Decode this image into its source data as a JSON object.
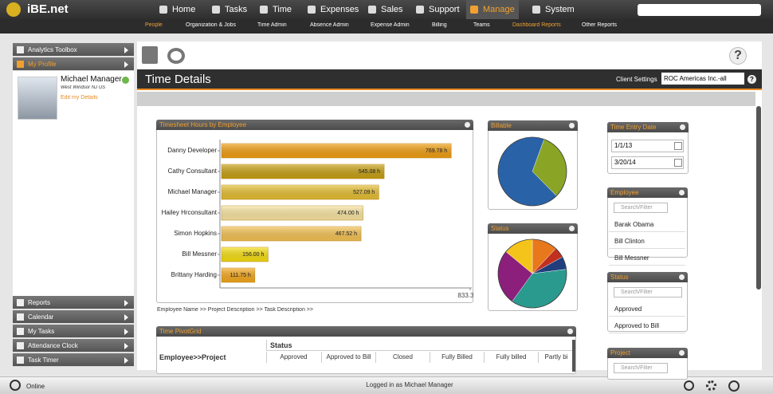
{
  "logo": "iBE.net",
  "nav": [
    "Home",
    "Tasks",
    "Time",
    "Expenses",
    "Sales",
    "Support",
    "Manage",
    "System"
  ],
  "subnav": [
    "People",
    "Organization & Jobs",
    "Time Admin",
    "Absence Admin",
    "Expense Admin",
    "Billing",
    "Teams",
    "Dashboard Reports",
    "Other Reports"
  ],
  "sidebar": {
    "top": [
      "Analytics Toolbox",
      "My Profile"
    ],
    "profile": {
      "name": "Michael Manager",
      "location": "West Windsor NJ US",
      "edit": "Edit my Details"
    },
    "bottom": [
      "Reports",
      "Calendar",
      "My Tasks",
      "Attendance Clock",
      "Task Timer"
    ]
  },
  "header": {
    "title": "Time Details",
    "client_settings": "Client Settings",
    "client": "ROC Americas Inc.-all"
  },
  "chart_data": [
    {
      "type": "bar",
      "title": "Timesheet Hours by Employee",
      "categories": [
        "Danny Developer",
        "Cathy Consultant",
        "Michael Manager",
        "Hailey Hrconsultant",
        "Simon Hopkins",
        "Bill Messner",
        "Brittany Harding"
      ],
      "values": [
        769.78,
        545.08,
        527.09,
        474.0,
        467.52,
        156.0,
        111.75
      ],
      "value_labels": [
        "769.78 h",
        "545.08 h",
        "527.09 h",
        "474.00 h",
        "467.52 h",
        "156.00 h",
        "111.75 h"
      ],
      "colors": [
        "#f2a012",
        "#c9a214",
        "#e7c032",
        "#fbe7a2",
        "#f7c455",
        "#f8e012",
        "#f6a91c"
      ],
      "xlim": [
        0,
        833.33
      ],
      "xticks": [
        {
          "value": 833.33,
          "label": "833.33 h"
        }
      ]
    },
    {
      "type": "pie",
      "title": "Billable",
      "values": [
        32,
        68
      ],
      "colors": [
        "#8aa526",
        "#2a62a8"
      ]
    },
    {
      "type": "pie",
      "title": "Status",
      "values": [
        12,
        5,
        6,
        37,
        26,
        14
      ],
      "colors": [
        "#e8781c",
        "#c0301f",
        "#213e7c",
        "#2a9a8e",
        "#8c1f7c",
        "#f4c41a"
      ]
    }
  ],
  "breadcrumb": "Employee Name >> Project Description >> Task Description >>",
  "filters": {
    "date": {
      "title": "Time Entry Date",
      "from": "1/1/13",
      "to": "3/20/14"
    },
    "employee": {
      "title": "Employee",
      "placeholder": "Search/Filter",
      "items": [
        "Barak Obama",
        "Bill Clinton",
        "Bill Messner"
      ]
    },
    "status": {
      "title": "Status",
      "placeholder": "Search/Filter",
      "items": [
        "Approved",
        "Approved to Bill"
      ]
    },
    "project": {
      "title": "Project",
      "placeholder": "Search/Filter"
    }
  },
  "pivot": {
    "title": "Time PivotGrid",
    "group": "Status",
    "row_header": "Employee>>Project",
    "columns": [
      "Approved",
      "Approved to Bill",
      "Closed",
      "Fully Billed",
      "Fully billed",
      "Partly bi"
    ]
  },
  "footer": {
    "status": "Online",
    "user": "Logged in as Michael Manager"
  }
}
